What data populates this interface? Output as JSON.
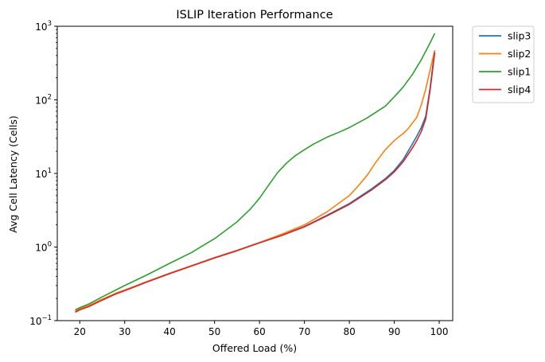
{
  "chart_data": {
    "type": "line",
    "title": "ISLIP Iteration Performance",
    "xlabel": "Offered Load (%)",
    "ylabel": "Avg Cell Latency (Cells)",
    "xlim": [
      15,
      103
    ],
    "ylim": [
      0.1,
      1000
    ],
    "yscale": "log",
    "grid": false,
    "legend_position": "outside-top-right",
    "x_ticks": [
      20,
      30,
      40,
      50,
      60,
      70,
      80,
      90,
      100
    ],
    "x_tick_labels": [
      "20",
      "30",
      "40",
      "50",
      "60",
      "70",
      "80",
      "90",
      "100"
    ],
    "y_ticks": [
      0.1,
      1,
      10,
      100,
      1000
    ],
    "y_tick_labels": [
      {
        "base": "10",
        "exp": "−1"
      },
      {
        "base": "10",
        "exp": "0"
      },
      {
        "base": "10",
        "exp": "1"
      },
      {
        "base": "10",
        "exp": "2"
      },
      {
        "base": "10",
        "exp": "3"
      }
    ],
    "series": [
      {
        "name": "slip3",
        "color": "#1f77b4",
        "x": [
          19,
          20,
          22,
          25,
          28,
          30,
          35,
          40,
          45,
          50,
          55,
          60,
          65,
          70,
          75,
          80,
          85,
          88,
          90,
          92,
          94,
          95,
          96,
          97,
          98,
          99
        ],
        "y": [
          0.135,
          0.145,
          0.16,
          0.195,
          0.235,
          0.26,
          0.34,
          0.44,
          0.56,
          0.72,
          0.9,
          1.15,
          1.45,
          1.9,
          2.7,
          3.9,
          6.2,
          8.5,
          11,
          15.5,
          25,
          32,
          42,
          60,
          150,
          470
        ]
      },
      {
        "name": "slip2",
        "color": "#ff7f0e",
        "x": [
          19,
          20,
          22,
          25,
          28,
          30,
          35,
          40,
          45,
          50,
          55,
          60,
          65,
          70,
          75,
          80,
          82,
          84,
          86,
          88,
          90,
          92,
          93,
          94,
          95,
          96,
          97,
          98,
          99
        ],
        "y": [
          0.135,
          0.145,
          0.16,
          0.195,
          0.235,
          0.26,
          0.34,
          0.44,
          0.56,
          0.72,
          0.9,
          1.15,
          1.5,
          2.0,
          3.0,
          5.0,
          6.8,
          9.5,
          14.5,
          21,
          28,
          35,
          40,
          48,
          58,
          85,
          140,
          260,
          470
        ]
      },
      {
        "name": "slip1",
        "color": "#2ca02c",
        "x": [
          19,
          20,
          22,
          25,
          28,
          30,
          35,
          40,
          45,
          48,
          50,
          52,
          55,
          58,
          60,
          62,
          64,
          66,
          68,
          70,
          72,
          75,
          78,
          80,
          84,
          88,
          90,
          92,
          94,
          96,
          98,
          99
        ],
        "y": [
          0.14,
          0.15,
          0.168,
          0.21,
          0.26,
          0.3,
          0.42,
          0.6,
          0.85,
          1.1,
          1.3,
          1.6,
          2.2,
          3.3,
          4.6,
          6.9,
          10.2,
          13.8,
          17.5,
          21,
          25,
          31,
          37,
          42,
          57,
          82,
          110,
          150,
          220,
          350,
          600,
          800
        ]
      },
      {
        "name": "slip4",
        "color": "#d62728",
        "x": [
          19,
          20,
          22,
          25,
          28,
          30,
          35,
          40,
          45,
          50,
          55,
          60,
          65,
          70,
          75,
          80,
          85,
          88,
          90,
          92,
          94,
          95,
          96,
          97,
          98,
          99
        ],
        "y": [
          0.13,
          0.14,
          0.155,
          0.19,
          0.23,
          0.255,
          0.335,
          0.435,
          0.555,
          0.71,
          0.89,
          1.14,
          1.44,
          1.88,
          2.65,
          3.8,
          6.0,
          8.2,
          10.5,
          14.5,
          22,
          28,
          37,
          55,
          140,
          440
        ]
      }
    ]
  }
}
